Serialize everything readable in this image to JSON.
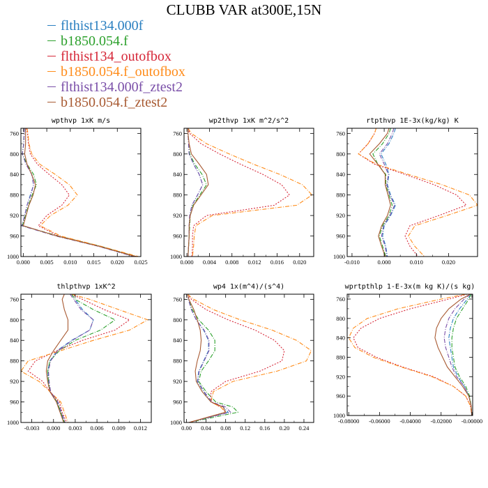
{
  "title": "CLUBB VAR at300E,15N",
  "legend": [
    {
      "name": "flthist134.000f",
      "color": "#2a7fc0"
    },
    {
      "name": "b1850.054.f",
      "color": "#2ca02c"
    },
    {
      "name": "flthist134_outofbox",
      "color": "#d62738"
    },
    {
      "name": "b1850.054.f_outofbox",
      "color": "#ff8c1a"
    },
    {
      "name": "flthist134.000f_ztest2",
      "color": "#7a4fa8"
    },
    {
      "name": "b1850.054.f_ztest2",
      "color": "#a85a32"
    }
  ],
  "chart_data": [
    {
      "type": "line",
      "title": "wpthvp  1xK m/s",
      "y": [
        750,
        760,
        780,
        800,
        820,
        840,
        860,
        880,
        900,
        920,
        940,
        960,
        980,
        1000
      ],
      "ylim": [
        1000,
        750
      ],
      "xlim": [
        -0.0005,
        0.025
      ],
      "yticks": [
        760,
        800,
        840,
        880,
        920,
        960,
        1000
      ],
      "yticklabels": [
        "760",
        "800",
        "840",
        "880",
        "920",
        "960",
        "1000"
      ],
      "xticks": [
        0,
        0.005,
        0.01,
        0.015,
        0.02,
        0.025
      ],
      "xticklabels": [
        "0.000",
        "0.005",
        "0.010",
        "0.015",
        "0.020",
        "0.025"
      ],
      "series": [
        {
          "values": [
            0.0003,
            0.0002,
            0.0001,
            -0.0002,
            0.0006,
            0.0018,
            0.0022,
            0.0015,
            0.0008,
            0.0003,
            -0.0003,
            0.007,
            0.016,
            0.0235
          ]
        },
        {
          "values": [
            0.0003,
            0.0002,
            0.0001,
            -0.0002,
            0.0008,
            0.0022,
            0.0028,
            0.0019,
            0.0011,
            0.0005,
            -0.0002,
            0.0075,
            0.0165,
            0.024
          ]
        },
        {
          "values": [
            0.0007,
            0.0009,
            0.0011,
            0.0015,
            0.003,
            0.0055,
            0.0082,
            0.0098,
            0.0082,
            0.005,
            0.0032,
            0.0075,
            0.016,
            0.024
          ]
        },
        {
          "values": [
            0.0008,
            0.001,
            0.0012,
            0.0018,
            0.0035,
            0.0068,
            0.0098,
            0.0115,
            0.0095,
            0.0058,
            0.0036,
            0.008,
            0.0165,
            0.0245
          ]
        },
        {
          "values": [
            0.0003,
            0.0002,
            0.0001,
            -0.0002,
            0.0006,
            0.0018,
            0.0022,
            0.0016,
            0.0008,
            0.0003,
            -0.0003,
            0.007,
            0.016,
            0.0235
          ]
        },
        {
          "values": [
            0.0005,
            0.0005,
            0.0005,
            0.0003,
            0.0008,
            0.0018,
            0.0026,
            0.0021,
            0.0012,
            0.0006,
            0.0,
            0.0072,
            0.0162,
            0.0238
          ]
        }
      ]
    },
    {
      "type": "line",
      "title": "wp2thvp  1xK m^2/s^2",
      "y": [
        750,
        760,
        780,
        800,
        820,
        840,
        860,
        880,
        900,
        920,
        940,
        960,
        980,
        1000
      ],
      "ylim": [
        1000,
        750
      ],
      "xlim": [
        -0.0005,
        0.0225
      ],
      "yticks": [
        760,
        800,
        840,
        880,
        920,
        960,
        1000
      ],
      "yticklabels": [
        "760",
        "800",
        "840",
        "880",
        "920",
        "960",
        "1000"
      ],
      "xticks": [
        0,
        0.004,
        0.008,
        0.012,
        0.016,
        0.02
      ],
      "xticklabels": [
        "0.000",
        "0.004",
        "0.008",
        "0.012",
        "0.016",
        "0.020"
      ],
      "series": [
        {
          "values": [
            0.0002,
            0.0002,
            0.0003,
            0.0004,
            0.0012,
            0.0022,
            0.0028,
            0.0019,
            0.0009,
            0.0005,
            0.0004,
            0.0004,
            0.0003,
            0.0002
          ]
        },
        {
          "values": [
            0.0002,
            0.0002,
            0.0003,
            0.0005,
            0.0014,
            0.0027,
            0.0035,
            0.0023,
            0.0011,
            0.0006,
            0.0005,
            0.0004,
            0.0003,
            0.0002
          ]
        },
        {
          "values": [
            0.0002,
            0.0005,
            0.0025,
            0.0058,
            0.0095,
            0.0135,
            0.0168,
            0.0182,
            0.0155,
            0.0035,
            0.0012,
            0.001,
            0.001,
            0.0009
          ]
        },
        {
          "values": [
            0.0002,
            0.0008,
            0.0035,
            0.0075,
            0.0118,
            0.0165,
            0.0205,
            0.0222,
            0.0195,
            0.0045,
            0.0016,
            0.0013,
            0.0012,
            0.001
          ]
        },
        {
          "values": [
            0.0002,
            0.0002,
            0.0003,
            0.0004,
            0.0012,
            0.0022,
            0.0028,
            0.0019,
            0.0009,
            0.0005,
            0.0004,
            0.0004,
            0.0003,
            0.0002
          ]
        },
        {
          "values": [
            0.0002,
            0.0002,
            0.0004,
            0.0008,
            0.0022,
            0.0035,
            0.0038,
            0.0025,
            0.0012,
            0.0006,
            0.0004,
            0.0004,
            0.0003,
            0.0002
          ]
        }
      ]
    },
    {
      "type": "line",
      "title": "rtpthvp  1E-3x(kg/kg) K",
      "y": [
        750,
        760,
        780,
        800,
        820,
        840,
        860,
        880,
        900,
        920,
        940,
        960,
        980,
        1000
      ],
      "ylim": [
        1000,
        750
      ],
      "xlim": [
        -0.0115,
        0.029
      ],
      "yticks": [
        760,
        800,
        840,
        880,
        920,
        960,
        1000
      ],
      "yticklabels": [
        "760",
        "800",
        "840",
        "880",
        "920",
        "960",
        "1000"
      ],
      "xticks": [
        -0.01,
        0,
        0.01,
        0.02
      ],
      "xticklabels": [
        "-0.010",
        "0.000",
        "0.010",
        "0.020"
      ],
      "series": [
        {
          "values": [
            0.0035,
            0.003,
            0.0015,
            -0.001,
            0.0005,
            0.0015,
            0.001,
            0.002,
            0.0035,
            0.002,
            0.0,
            -0.0005,
            0.0005,
            0.001
          ]
        },
        {
          "values": [
            0.002,
            0.0015,
            -0.0005,
            -0.0035,
            -0.002,
            0.0005,
            0.0005,
            0.0015,
            0.0025,
            0.0015,
            -0.0005,
            -0.0015,
            -0.0005,
            0.0005
          ]
        },
        {
          "values": [
            -0.0025,
            -0.003,
            -0.005,
            -0.008,
            -0.003,
            0.0065,
            0.0155,
            0.0225,
            0.0255,
            0.017,
            0.008,
            0.0065,
            0.008,
            0.0105
          ]
        },
        {
          "values": [
            -0.0025,
            -0.003,
            -0.005,
            -0.008,
            -0.0025,
            0.0075,
            0.018,
            0.0265,
            0.029,
            0.0195,
            0.0095,
            0.0075,
            0.0095,
            0.0125
          ]
        },
        {
          "values": [
            0.003,
            0.0025,
            0.001,
            -0.0015,
            0.0,
            0.0013,
            0.0008,
            0.0018,
            0.0032,
            0.0018,
            -0.0002,
            -0.0008,
            0.0003,
            0.0008
          ]
        },
        {
          "values": [
            0.0015,
            0.001,
            -0.0015,
            -0.0045,
            -0.002,
            0.0003,
            0.0003,
            0.0012,
            0.002,
            0.001,
            -0.0008,
            -0.0018,
            -0.0008,
            0.0003
          ]
        }
      ]
    },
    {
      "type": "line",
      "title": "thlpthvp  1xK^2",
      "y": [
        750,
        760,
        780,
        800,
        820,
        840,
        860,
        880,
        900,
        920,
        940,
        960,
        980,
        1000
      ],
      "ylim": [
        1000,
        750
      ],
      "xlim": [
        -0.0045,
        0.0135
      ],
      "yticks": [
        760,
        800,
        840,
        880,
        920,
        960,
        1000
      ],
      "yticklabels": [
        "760",
        "800",
        "840",
        "880",
        "920",
        "960",
        "1000"
      ],
      "xticks": [
        -0.003,
        0,
        0.003,
        0.006,
        0.009,
        0.012
      ],
      "xticklabels": [
        "-0.003",
        "0.000",
        "0.003",
        "0.006",
        "0.009",
        "0.012"
      ],
      "series": [
        {
          "values": [
            0.0025,
            0.003,
            0.004,
            0.0055,
            0.005,
            0.0025,
            0.0005,
            -0.0005,
            -0.0008,
            -0.0007,
            -0.0005,
            0.0005,
            0.001,
            0.0015
          ]
        },
        {
          "values": [
            0.0025,
            0.003,
            0.0055,
            0.0085,
            0.0065,
            0.003,
            0.0008,
            -0.0005,
            -0.0008,
            -0.0007,
            -0.0005,
            0.0005,
            0.001,
            0.0015
          ]
        },
        {
          "values": [
            0.0025,
            0.004,
            0.007,
            0.0105,
            0.0085,
            0.004,
            0.0005,
            -0.0025,
            -0.0035,
            -0.0015,
            -0.0005,
            0.0008,
            0.0012,
            0.0018
          ]
        },
        {
          "values": [
            0.0025,
            0.005,
            0.009,
            0.013,
            0.0105,
            0.0055,
            0.001,
            -0.0035,
            -0.0045,
            -0.002,
            -0.0005,
            0.001,
            0.0015,
            0.002
          ]
        },
        {
          "values": [
            0.0023,
            0.0028,
            0.0038,
            0.0055,
            0.005,
            0.0026,
            0.0006,
            -0.0004,
            -0.0007,
            -0.0006,
            -0.0004,
            0.0006,
            0.0011,
            0.0016
          ]
        },
        {
          "values": [
            0.0015,
            0.0012,
            0.0015,
            0.002,
            0.002,
            0.001,
            0.0,
            -0.0008,
            -0.001,
            -0.0008,
            -0.0005,
            0.0004,
            0.0009,
            0.0014
          ]
        }
      ]
    },
    {
      "type": "line",
      "title": "wp4  1x(m^4)/(s^4)",
      "y": [
        750,
        760,
        780,
        800,
        820,
        840,
        860,
        880,
        900,
        920,
        940,
        960,
        970,
        980,
        1000
      ],
      "ylim": [
        1000,
        750
      ],
      "xlim": [
        -0.005,
        0.26
      ],
      "yticks": [
        760,
        800,
        840,
        880,
        920,
        960,
        1000
      ],
      "yticklabels": [
        "760",
        "800",
        "840",
        "880",
        "920",
        "960",
        "1000"
      ],
      "xticks": [
        0,
        0.04,
        0.08,
        0.12,
        0.16,
        0.2,
        0.24
      ],
      "xticklabels": [
        "0.00",
        "0.04",
        "0.08",
        "0.12",
        "0.16",
        "0.20",
        "0.24"
      ],
      "series": [
        {
          "values": [
            0.002,
            0.004,
            0.01,
            0.02,
            0.035,
            0.045,
            0.045,
            0.035,
            0.025,
            0.022,
            0.035,
            0.05,
            0.075,
            0.085,
            0.005
          ]
        },
        {
          "values": [
            0.002,
            0.004,
            0.012,
            0.025,
            0.045,
            0.058,
            0.058,
            0.045,
            0.03,
            0.025,
            0.04,
            0.06,
            0.095,
            0.105,
            0.005
          ]
        },
        {
          "values": [
            0.002,
            0.01,
            0.04,
            0.085,
            0.14,
            0.18,
            0.2,
            0.195,
            0.15,
            0.08,
            0.05,
            0.05,
            0.07,
            0.08,
            0.005
          ]
        },
        {
          "values": [
            0.002,
            0.015,
            0.055,
            0.11,
            0.175,
            0.225,
            0.255,
            0.245,
            0.185,
            0.095,
            0.055,
            0.05,
            0.07,
            0.08,
            0.005
          ]
        },
        {
          "values": [
            0.002,
            0.004,
            0.01,
            0.02,
            0.036,
            0.046,
            0.046,
            0.036,
            0.026,
            0.023,
            0.036,
            0.052,
            0.08,
            0.09,
            0.005
          ]
        },
        {
          "values": [
            0.002,
            0.005,
            0.015,
            0.022,
            0.028,
            0.03,
            0.028,
            0.022,
            0.018,
            0.02,
            0.032,
            0.05,
            0.075,
            0.08,
            0.005
          ]
        }
      ]
    },
    {
      "type": "line",
      "title": "wprtpthlp  1-E-3x(m kg K)/(s kg)",
      "y": [
        750,
        760,
        780,
        800,
        820,
        840,
        860,
        880,
        900,
        920,
        940,
        960,
        980,
        1000
      ],
      "ylim": [
        1000,
        750
      ],
      "xlim": [
        -0.081,
        0.0005
      ],
      "yticks": [
        760,
        800,
        840,
        880,
        920,
        960,
        1000
      ],
      "yticklabels": [
        "760",
        "800",
        "840",
        "880",
        "920",
        "960",
        "1000"
      ],
      "xticks": [
        -0.08,
        -0.06,
        -0.04,
        -0.02,
        0
      ],
      "xticklabels": [
        "-0.08000",
        "-0.06000",
        "-0.04000",
        "-0.02000",
        "-0.00000"
      ],
      "series": [
        {
          "values": [
            -0.0005,
            -0.003,
            -0.008,
            -0.012,
            -0.014,
            -0.015,
            -0.014,
            -0.013,
            -0.012,
            -0.009,
            -0.005,
            -0.002,
            -0.0005,
            0.0
          ]
        },
        {
          "values": [
            -0.0005,
            -0.002,
            -0.006,
            -0.01,
            -0.012,
            -0.013,
            -0.013,
            -0.012,
            -0.011,
            -0.008,
            -0.004,
            -0.0015,
            -0.0005,
            0.0
          ]
        },
        {
          "values": [
            -0.003,
            -0.015,
            -0.04,
            -0.06,
            -0.072,
            -0.077,
            -0.074,
            -0.062,
            -0.045,
            -0.025,
            -0.012,
            -0.004,
            -0.001,
            0.0
          ]
        },
        {
          "values": [
            -0.004,
            -0.02,
            -0.048,
            -0.068,
            -0.077,
            -0.08,
            -0.076,
            -0.064,
            -0.046,
            -0.026,
            -0.012,
            -0.004,
            -0.001,
            0.0
          ]
        },
        {
          "values": [
            -0.001,
            -0.005,
            -0.011,
            -0.015,
            -0.017,
            -0.018,
            -0.017,
            -0.015,
            -0.013,
            -0.01,
            -0.005,
            -0.002,
            -0.0005,
            0.0
          ]
        },
        {
          "values": [
            -0.001,
            -0.007,
            -0.015,
            -0.02,
            -0.023,
            -0.024,
            -0.022,
            -0.019,
            -0.016,
            -0.011,
            -0.006,
            -0.002,
            -0.0005,
            0.0
          ]
        }
      ]
    }
  ]
}
